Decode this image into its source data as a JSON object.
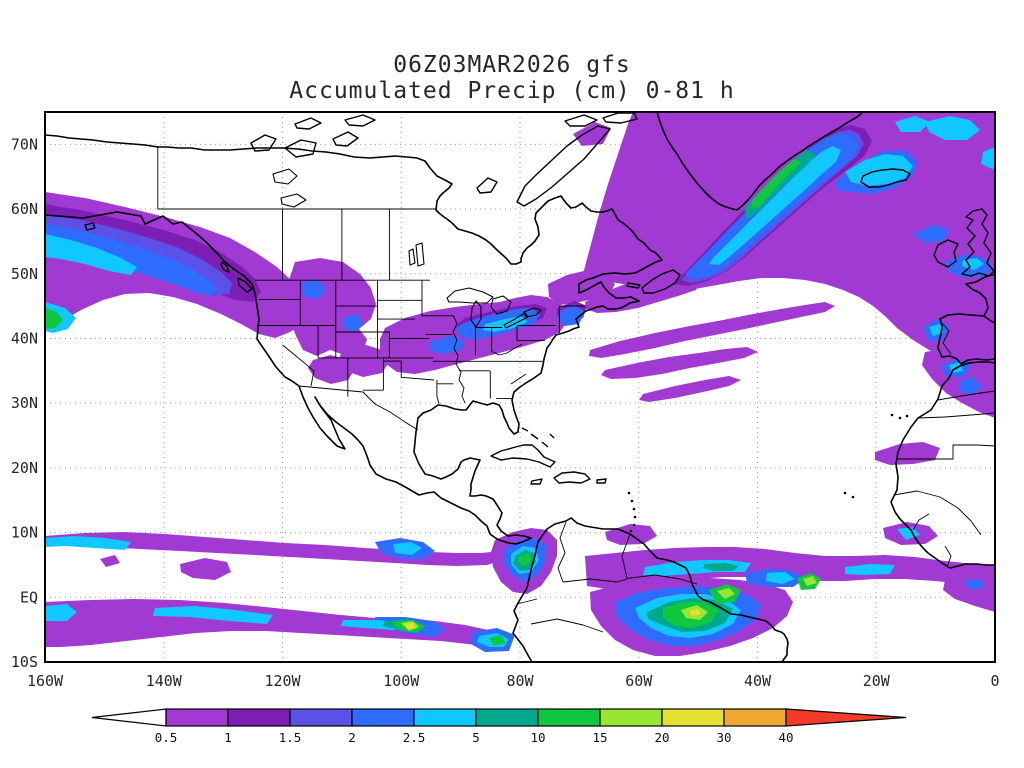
{
  "title": {
    "line1": "06Z03MAR2026 gfs",
    "line2": "Accumulated Precip (cm) 0-81 h"
  },
  "chart_data": {
    "type": "heatmap",
    "title": "06Z03MAR2026 gfs",
    "subtitle": "Accumulated Precip (cm) 0-81 h",
    "variable": "Accumulated Precip",
    "units": "cm",
    "forecast_window": "0-81 h",
    "init_label": "06Z03MAR2026",
    "model_label": "gfs",
    "lon_range": [
      -160,
      0
    ],
    "lat_range": [
      -10,
      75
    ],
    "lat_ticks": [
      "70N",
      "60N",
      "50N",
      "40N",
      "30N",
      "20N",
      "10N",
      "EQ",
      "10S"
    ],
    "lat_tick_values": [
      70,
      60,
      50,
      40,
      30,
      20,
      10,
      0,
      -10
    ],
    "lon_ticks": [
      "160W",
      "140W",
      "120W",
      "100W",
      "80W",
      "60W",
      "40W",
      "20W",
      "0"
    ],
    "lon_tick_values": [
      -160,
      -140,
      -120,
      -100,
      -80,
      -60,
      -40,
      -20,
      0
    ],
    "grid": "dotted",
    "legend_position": "bottom",
    "colorbar": {
      "levels": [
        "0.5",
        "1",
        "1.5",
        "2",
        "2.5",
        "5",
        "10",
        "15",
        "20",
        "30",
        "40"
      ],
      "colors": [
        "#ffffff",
        "#a03ad2",
        "#7d1fb4",
        "#5b51e8",
        "#2e6bff",
        "#10c8ff",
        "#00a98c",
        "#10c840",
        "#96e632",
        "#e6e032",
        "#f0a830",
        "#f03c28"
      ],
      "color_names": [
        "white",
        "purple",
        "dark-purple",
        "indigo",
        "blue",
        "cyan",
        "teal",
        "green",
        "yellow-green",
        "yellow",
        "orange",
        "red"
      ]
    },
    "features": [
      {
        "region": "North Pacific storm track from Gulf of Alaska into Pacific Northwest",
        "max_level_cm": "2.5-5"
      },
      {
        "region": "Interior western Canada / northern Rockies patches",
        "max_level_cm": "2-2.5"
      },
      {
        "region": "Central and eastern United States band through Ohio Valley to New England",
        "max_level_cm": "2.5-5"
      },
      {
        "region": "Large North Atlantic storm complex from Labrador Sea past Iceland to Europe",
        "max_level_cm": "5-10"
      },
      {
        "region": "Band hugging southeast Greenland coast",
        "max_level_cm": "10-15"
      },
      {
        "region": "Iberia and Morocco coastal precipitation",
        "max_level_cm": "2.5-5"
      },
      {
        "region": "Subtropical Atlantic streaks 25N-40N",
        "max_level_cm": "0.5-1"
      },
      {
        "region": "Pacific ITCZ bands north and south of the equator",
        "max_level_cm": "20-30"
      },
      {
        "region": "Colombia / Panama convection",
        "max_level_cm": "10-15"
      },
      {
        "region": "Amazon basin and Atlantic ITCZ convection",
        "max_level_cm": "20-30"
      },
      {
        "region": "Gulf of Guinea coastal showers",
        "max_level_cm": "2-2.5"
      }
    ]
  }
}
